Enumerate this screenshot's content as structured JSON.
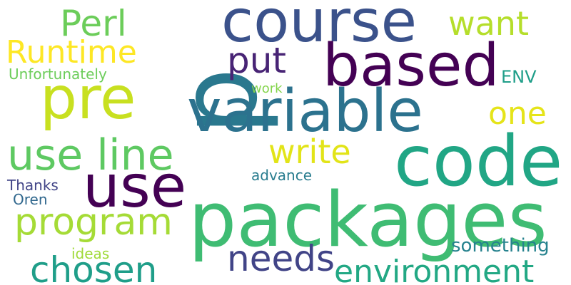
{
  "words": [
    {
      "id": "p",
      "text": "p",
      "color": "#2a788e"
    },
    {
      "id": "course",
      "text": "course",
      "color": "#3b528b"
    },
    {
      "id": "based",
      "text": "based",
      "color": "#440154"
    },
    {
      "id": "variable",
      "text": "variable",
      "color": "#2c728e"
    },
    {
      "id": "code",
      "text": "code",
      "color": "#21a685"
    },
    {
      "id": "packages",
      "text": "packages",
      "color": "#3fbc73"
    },
    {
      "id": "use_big",
      "text": "use",
      "color": "#440154"
    },
    {
      "id": "pre",
      "text": "pre",
      "color": "#c8e020"
    },
    {
      "id": "use_line",
      "text": "use line",
      "color": "#5ec962"
    },
    {
      "id": "Perl",
      "text": "Perl",
      "color": "#6ccd5a"
    },
    {
      "id": "Runtime",
      "text": "Runtime",
      "color": "#fde725"
    },
    {
      "id": "put",
      "text": "put",
      "color": "#482475"
    },
    {
      "id": "want",
      "text": "want",
      "color": "#b5de2b"
    },
    {
      "id": "Unfortunately",
      "text": "Unfortunately",
      "color": "#6ccd5a"
    },
    {
      "id": "ENV",
      "text": "ENV",
      "color": "#1f9e89"
    },
    {
      "id": "work",
      "text": "work",
      "color": "#84d44b"
    },
    {
      "id": "one",
      "text": "one",
      "color": "#e5e419"
    },
    {
      "id": "write",
      "text": "write",
      "color": "#e2e418"
    },
    {
      "id": "advance",
      "text": "advance",
      "color": "#287c8e"
    },
    {
      "id": "program",
      "text": "program",
      "color": "#a5db36"
    },
    {
      "id": "Thanks",
      "text": "Thanks",
      "color": "#414487"
    },
    {
      "id": "Oren",
      "text": "Oren",
      "color": "#31688e"
    },
    {
      "id": "needs",
      "text": "needs",
      "color": "#414487"
    },
    {
      "id": "chosen",
      "text": "chosen",
      "color": "#1f9e89"
    },
    {
      "id": "ideas",
      "text": "ideas",
      "color": "#a0da39"
    },
    {
      "id": "something",
      "text": "something",
      "color": "#26828e"
    },
    {
      "id": "environment",
      "text": "environment",
      "color": "#22a884"
    }
  ]
}
